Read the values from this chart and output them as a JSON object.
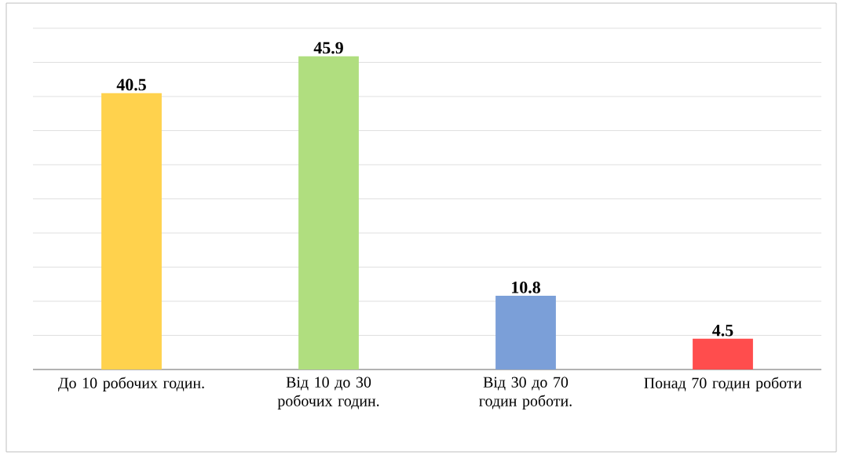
{
  "chart_data": {
    "type": "bar",
    "categories": [
      "До 10 робочих годин.",
      "Від 10 до 30 робочих годин.",
      "Від 30 до 70 годин роботи.",
      "Понад 70 годин роботи"
    ],
    "values": [
      40.5,
      45.9,
      10.8,
      4.5
    ],
    "colors": [
      "#ffd24d",
      "#b0de7f",
      "#7b9fd8",
      "#ff4d4d"
    ],
    "ylim": [
      0,
      50
    ],
    "grid": "y",
    "tick_labels": "x",
    "data_labels": true
  }
}
